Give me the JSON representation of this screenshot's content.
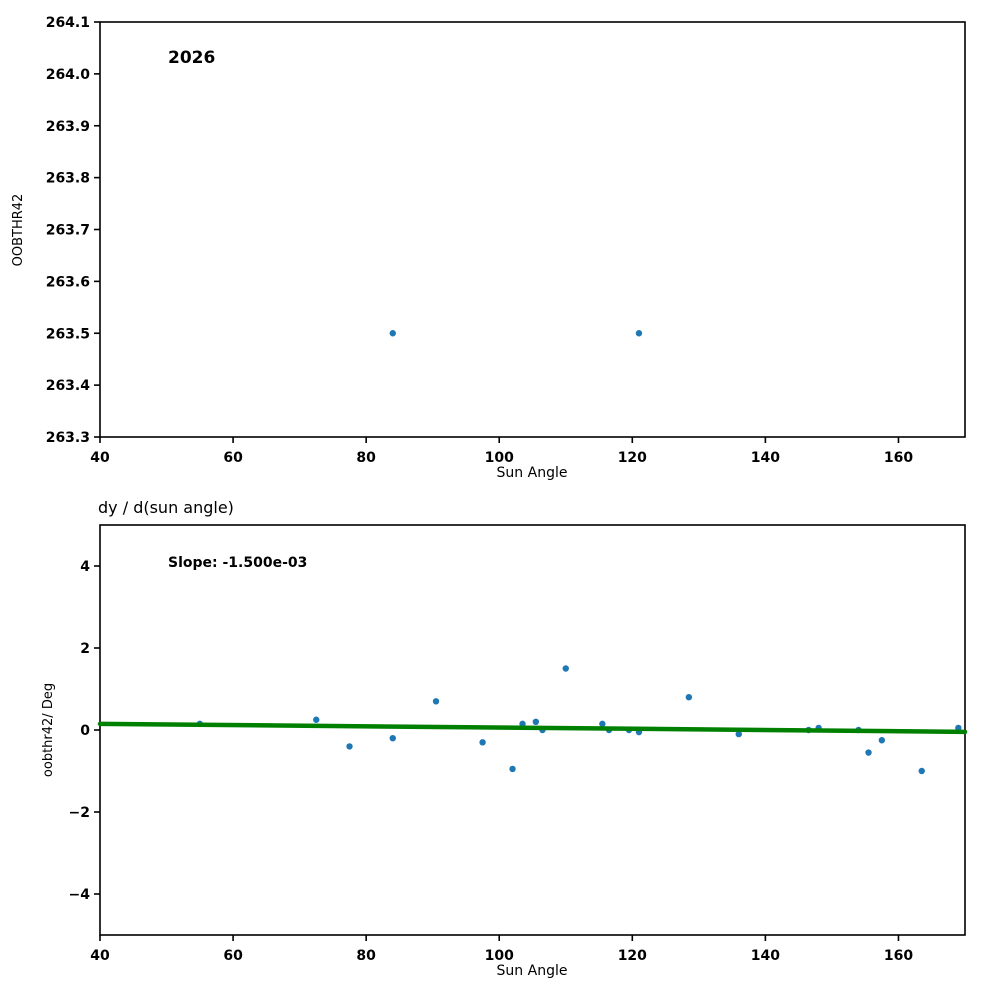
{
  "figure": {
    "background": "#ffffff",
    "marker_color": "#1f77b4",
    "trend_color": "#008000"
  },
  "chart_data": [
    {
      "type": "scatter",
      "annotation": "2026",
      "title": "",
      "xlabel": "Sun Angle",
      "ylabel": "OOBTHR42",
      "xlim": [
        40,
        170
      ],
      "ylim": [
        263.3,
        264.1
      ],
      "xticks": [
        40,
        60,
        80,
        100,
        120,
        140,
        160
      ],
      "xtick_labels": [
        "40",
        "60",
        "80",
        "100",
        "120",
        "140",
        "160"
      ],
      "yticks": [
        263.3,
        263.4,
        263.5,
        263.6,
        263.7,
        263.8,
        263.9,
        264.0,
        264.1
      ],
      "ytick_labels": [
        "263.3",
        "263.4",
        "263.5",
        "263.6",
        "263.7",
        "263.8",
        "263.9",
        "264.0",
        "264.1"
      ],
      "grid": false,
      "legend": null,
      "marker_color": "#1f77b4",
      "points": [
        [
          84,
          263.5
        ],
        [
          121,
          263.5
        ]
      ]
    },
    {
      "type": "scatter",
      "annotation": "Slope: -1.500e-03",
      "title": "dy / d(sun angle)",
      "xlabel": "Sun Angle",
      "ylabel": "oobthr42/ Deg",
      "xlim": [
        40,
        170
      ],
      "ylim": [
        -5,
        5
      ],
      "xticks": [
        40,
        60,
        80,
        100,
        120,
        140,
        160
      ],
      "xtick_labels": [
        "40",
        "60",
        "80",
        "100",
        "120",
        "140",
        "160"
      ],
      "yticks": [
        -4,
        -2,
        0,
        2,
        4
      ],
      "ytick_labels": [
        "−4",
        "−2",
        "0",
        "2",
        "4"
      ],
      "grid": false,
      "legend": null,
      "marker_color": "#1f77b4",
      "points": [
        [
          55,
          0.15
        ],
        [
          72.5,
          0.25
        ],
        [
          77.5,
          -0.4
        ],
        [
          84,
          -0.2
        ],
        [
          90.5,
          0.7
        ],
        [
          97.5,
          -0.3
        ],
        [
          102,
          -0.95
        ],
        [
          103.5,
          0.15
        ],
        [
          105.5,
          0.2
        ],
        [
          106.5,
          0.0
        ],
        [
          110,
          1.5
        ],
        [
          115.5,
          0.15
        ],
        [
          116.5,
          0.0
        ],
        [
          119.5,
          0.0
        ],
        [
          121,
          -0.05
        ],
        [
          128.5,
          0.8
        ],
        [
          136,
          -0.1
        ],
        [
          146.5,
          0.0
        ],
        [
          148,
          0.05
        ],
        [
          154,
          0.0
        ],
        [
          155.5,
          -0.55
        ],
        [
          157.5,
          -0.25
        ],
        [
          163.5,
          -1.0
        ],
        [
          169,
          0.05
        ]
      ],
      "trend": {
        "slope": -0.0015,
        "color": "#008000",
        "x": [
          40,
          170
        ],
        "y": [
          0.15,
          -0.045
        ]
      }
    }
  ]
}
